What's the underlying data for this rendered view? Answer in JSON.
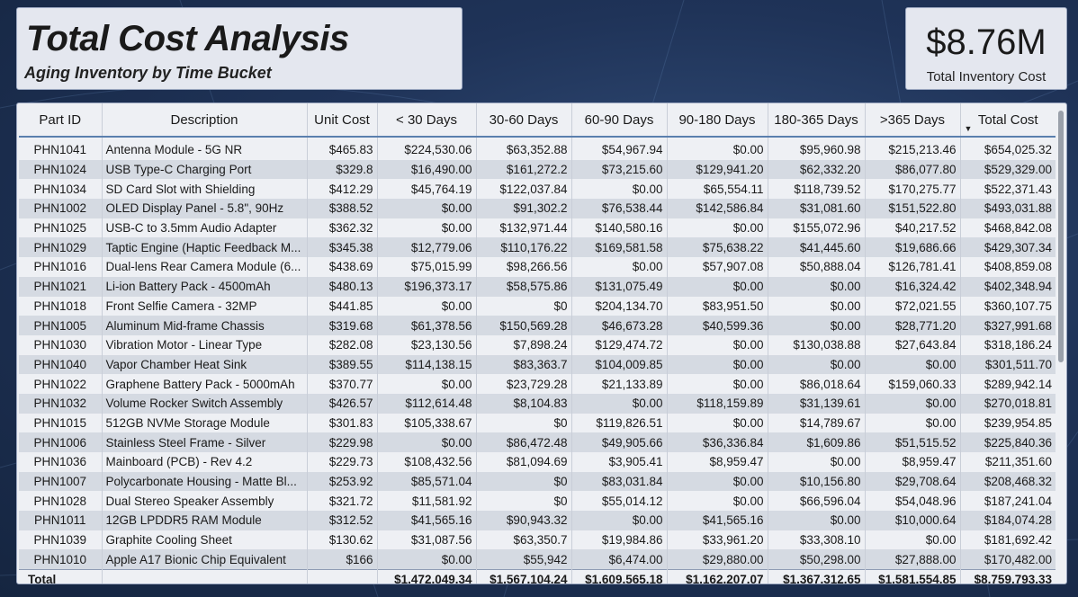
{
  "header": {
    "title": "Total Cost Analysis",
    "subtitle": "Aging Inventory by Time Bucket"
  },
  "kpi": {
    "value": "$8.76M",
    "label": "Total Inventory Cost"
  },
  "table": {
    "columns": [
      "Part ID",
      "Description",
      "Unit Cost",
      "< 30 Days",
      "30-60 Days",
      "60-90 Days",
      "90-180 Days",
      "180-365 Days",
      ">365 Days",
      "Total Cost"
    ],
    "sorted_column": "Total Cost",
    "sort_direction": "descending",
    "rows": [
      [
        "PHN1041",
        "Antenna Module - 5G NR",
        "$465.83",
        "$224,530.06",
        "$63,352.88",
        "$54,967.94",
        "$0.00",
        "$95,960.98",
        "$215,213.46",
        "$654,025.32"
      ],
      [
        "PHN1024",
        "USB Type-C Charging Port",
        "$329.8",
        "$16,490.00",
        "$161,272.2",
        "$73,215.60",
        "$129,941.20",
        "$62,332.20",
        "$86,077.80",
        "$529,329.00"
      ],
      [
        "PHN1034",
        "SD Card Slot with Shielding",
        "$412.29",
        "$45,764.19",
        "$122,037.84",
        "$0.00",
        "$65,554.11",
        "$118,739.52",
        "$170,275.77",
        "$522,371.43"
      ],
      [
        "PHN1002",
        "OLED Display Panel - 5.8\", 90Hz",
        "$388.52",
        "$0.00",
        "$91,302.2",
        "$76,538.44",
        "$142,586.84",
        "$31,081.60",
        "$151,522.80",
        "$493,031.88"
      ],
      [
        "PHN1025",
        "USB-C to 3.5mm Audio Adapter",
        "$362.32",
        "$0.00",
        "$132,971.44",
        "$140,580.16",
        "$0.00",
        "$155,072.96",
        "$40,217.52",
        "$468,842.08"
      ],
      [
        "PHN1029",
        "Taptic Engine (Haptic Feedback M...",
        "$345.38",
        "$12,779.06",
        "$110,176.22",
        "$169,581.58",
        "$75,638.22",
        "$41,445.60",
        "$19,686.66",
        "$429,307.34"
      ],
      [
        "PHN1016",
        "Dual-lens Rear Camera Module (6...",
        "$438.69",
        "$75,015.99",
        "$98,266.56",
        "$0.00",
        "$57,907.08",
        "$50,888.04",
        "$126,781.41",
        "$408,859.08"
      ],
      [
        "PHN1021",
        "Li-ion Battery Pack - 4500mAh",
        "$480.13",
        "$196,373.17",
        "$58,575.86",
        "$131,075.49",
        "$0.00",
        "$0.00",
        "$16,324.42",
        "$402,348.94"
      ],
      [
        "PHN1018",
        "Front Selfie Camera - 32MP",
        "$441.85",
        "$0.00",
        "$0",
        "$204,134.70",
        "$83,951.50",
        "$0.00",
        "$72,021.55",
        "$360,107.75"
      ],
      [
        "PHN1005",
        "Aluminum Mid-frame Chassis",
        "$319.68",
        "$61,378.56",
        "$150,569.28",
        "$46,673.28",
        "$40,599.36",
        "$0.00",
        "$28,771.20",
        "$327,991.68"
      ],
      [
        "PHN1030",
        "Vibration Motor - Linear Type",
        "$282.08",
        "$23,130.56",
        "$7,898.24",
        "$129,474.72",
        "$0.00",
        "$130,038.88",
        "$27,643.84",
        "$318,186.24"
      ],
      [
        "PHN1040",
        "Vapor Chamber Heat Sink",
        "$389.55",
        "$114,138.15",
        "$83,363.7",
        "$104,009.85",
        "$0.00",
        "$0.00",
        "$0.00",
        "$301,511.70"
      ],
      [
        "PHN1022",
        "Graphene Battery Pack - 5000mAh",
        "$370.77",
        "$0.00",
        "$23,729.28",
        "$21,133.89",
        "$0.00",
        "$86,018.64",
        "$159,060.33",
        "$289,942.14"
      ],
      [
        "PHN1032",
        "Volume Rocker Switch Assembly",
        "$426.57",
        "$112,614.48",
        "$8,104.83",
        "$0.00",
        "$118,159.89",
        "$31,139.61",
        "$0.00",
        "$270,018.81"
      ],
      [
        "PHN1015",
        "512GB NVMe Storage Module",
        "$301.83",
        "$105,338.67",
        "$0",
        "$119,826.51",
        "$0.00",
        "$14,789.67",
        "$0.00",
        "$239,954.85"
      ],
      [
        "PHN1006",
        "Stainless Steel Frame - Silver",
        "$229.98",
        "$0.00",
        "$86,472.48",
        "$49,905.66",
        "$36,336.84",
        "$1,609.86",
        "$51,515.52",
        "$225,840.36"
      ],
      [
        "PHN1036",
        "Mainboard (PCB) - Rev 4.2",
        "$229.73",
        "$108,432.56",
        "$81,094.69",
        "$3,905.41",
        "$8,959.47",
        "$0.00",
        "$8,959.47",
        "$211,351.60"
      ],
      [
        "PHN1007",
        "Polycarbonate Housing - Matte Bl...",
        "$253.92",
        "$85,571.04",
        "$0",
        "$83,031.84",
        "$0.00",
        "$10,156.80",
        "$29,708.64",
        "$208,468.32"
      ],
      [
        "PHN1028",
        "Dual Stereo Speaker Assembly",
        "$321.72",
        "$11,581.92",
        "$0",
        "$55,014.12",
        "$0.00",
        "$66,596.04",
        "$54,048.96",
        "$187,241.04"
      ],
      [
        "PHN1011",
        "12GB LPDDR5 RAM Module",
        "$312.52",
        "$41,565.16",
        "$90,943.32",
        "$0.00",
        "$41,565.16",
        "$0.00",
        "$10,000.64",
        "$184,074.28"
      ],
      [
        "PHN1039",
        "Graphite Cooling Sheet",
        "$130.62",
        "$31,087.56",
        "$63,350.7",
        "$19,984.86",
        "$33,961.20",
        "$33,308.10",
        "$0.00",
        "$181,692.42"
      ],
      [
        "PHN1010",
        "Apple A17 Bionic Chip Equivalent",
        "$166",
        "$0.00",
        "$55,942",
        "$6,474.00",
        "$29,880.00",
        "$50,298.00",
        "$27,888.00",
        "$170,482.00"
      ]
    ],
    "totals": {
      "label": "Total",
      "values": [
        "",
        "",
        "$1,472,049.34",
        "$1,567,104.24",
        "$1,609,565.18",
        "$1,162,207.07",
        "$1,367,312.65",
        "$1,581,554.85",
        "$8,759,793.33"
      ]
    }
  }
}
